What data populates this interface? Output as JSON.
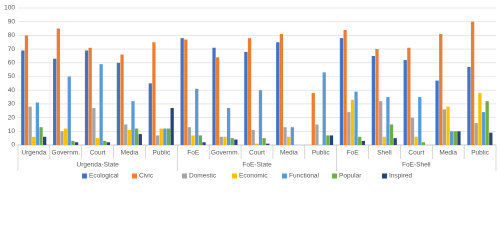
{
  "chart_data": {
    "type": "bar",
    "groups": [
      {
        "name": "Urgenda-State",
        "categories": [
          "Urgenda",
          "Governm.",
          "Court",
          "Media",
          "Public"
        ]
      },
      {
        "name": "FoE-State",
        "categories": [
          "FoE",
          "Governm.",
          "Court",
          "Media",
          "Public"
        ]
      },
      {
        "name": "FoE-Shell",
        "categories": [
          "FoE",
          "Shell",
          "Court",
          "Media",
          "Public"
        ]
      }
    ],
    "series": [
      {
        "name": "Ecological",
        "color": "#4472c4",
        "values": [
          69,
          63,
          69,
          60,
          45,
          78,
          71,
          68,
          75,
          0,
          78,
          65,
          62,
          47,
          57
        ]
      },
      {
        "name": "Civic",
        "color": "#ed7d31",
        "values": [
          80,
          85,
          71,
          66,
          75,
          77,
          64,
          78,
          81,
          38,
          84,
          70,
          71,
          81,
          90
        ]
      },
      {
        "name": "Domestic",
        "color": "#a5a5a5",
        "values": [
          28,
          10,
          27,
          15,
          7,
          13,
          6,
          11,
          13,
          15,
          24,
          32,
          20,
          26,
          16
        ]
      },
      {
        "name": "Economic",
        "color": "#ffc000",
        "values": [
          6,
          12,
          5,
          11,
          12,
          7,
          6,
          1,
          6,
          0,
          33,
          6,
          6,
          28,
          38
        ]
      },
      {
        "name": "Functional",
        "color": "#5b9bd5",
        "values": [
          31,
          50,
          59,
          32,
          12,
          41,
          27,
          40,
          13,
          53,
          39,
          35,
          35,
          10,
          24
        ]
      },
      {
        "name": "Popular",
        "color": "#70ad47",
        "values": [
          13,
          3,
          3,
          12,
          12,
          7,
          5,
          5,
          0,
          7,
          6,
          15,
          2,
          10,
          32
        ]
      },
      {
        "name": "Inspired",
        "color": "#264478",
        "values": [
          6,
          2,
          2,
          8,
          27,
          2,
          4,
          1,
          0,
          7,
          3,
          5,
          0,
          10,
          9
        ]
      }
    ],
    "ylim": [
      0,
      100
    ],
    "yticks": [
      0,
      10,
      20,
      30,
      40,
      50,
      60,
      70,
      80,
      90,
      100
    ],
    "grid": true,
    "legend": "bottom"
  }
}
